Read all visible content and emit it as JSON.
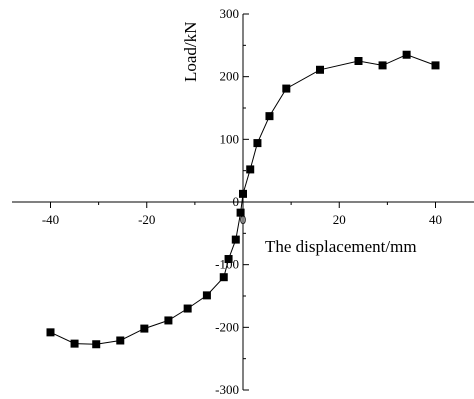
{
  "chart_data": {
    "type": "line",
    "xlabel": "The displacement/mm",
    "ylabel": "Load/kN",
    "xlim": [
      -48,
      48
    ],
    "ylim": [
      -300,
      300
    ],
    "x_ticks": [
      -40,
      -20,
      0,
      20,
      40
    ],
    "x_tick_labels": [
      "-40",
      "-20",
      "0",
      "20",
      "40"
    ],
    "y_ticks": [
      -300,
      -200,
      -100,
      0,
      100,
      200,
      300
    ],
    "y_tick_labels": [
      "-300",
      "-200",
      "-100",
      "0",
      "100",
      "200",
      "300"
    ],
    "grid": false,
    "series": [
      {
        "marker": "square",
        "color": "#000000",
        "points": [
          [
            -40.0,
            -208
          ],
          [
            -35.0,
            -226
          ],
          [
            -30.5,
            -227
          ],
          [
            -25.5,
            -221
          ],
          [
            -20.5,
            -202
          ],
          [
            -15.5,
            -189
          ],
          [
            -11.5,
            -170
          ],
          [
            -7.5,
            -149
          ],
          [
            -4.0,
            -120
          ],
          [
            -3.0,
            -91
          ],
          [
            -1.5,
            -60
          ],
          [
            -0.5,
            -17
          ],
          [
            0.0,
            13
          ],
          [
            1.5,
            52
          ],
          [
            3.0,
            94
          ],
          [
            5.5,
            137
          ],
          [
            9.0,
            181
          ],
          [
            16.0,
            211
          ],
          [
            24.0,
            225
          ],
          [
            29.0,
            218
          ],
          [
            34.0,
            235
          ],
          [
            40.0,
            218
          ]
        ]
      }
    ]
  }
}
